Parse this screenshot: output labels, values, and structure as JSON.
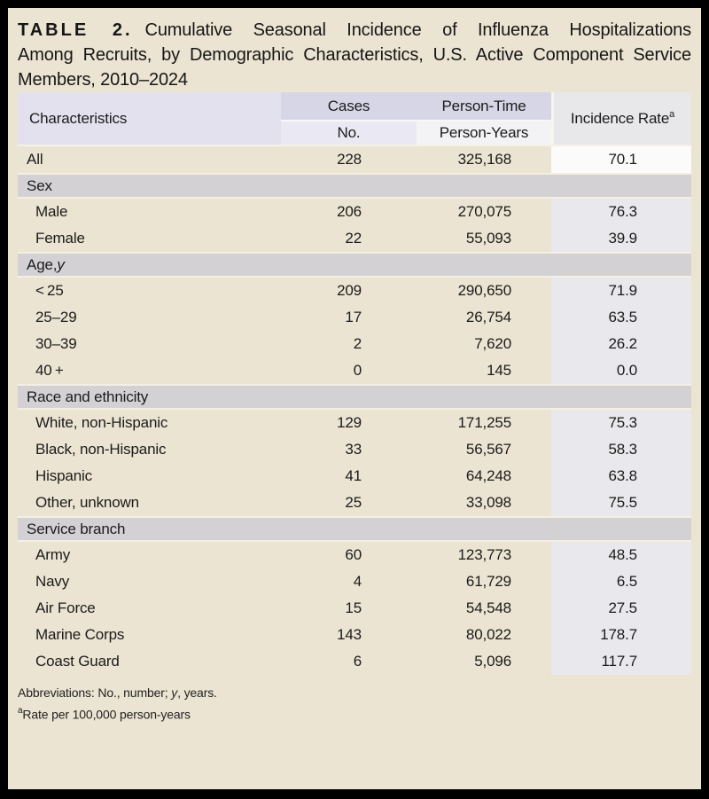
{
  "title": {
    "tag": "TABLE 2.",
    "line1_rest": "Cumulative Seasonal Incidence of Influenza Hospitalizations",
    "line2": "Among Recruits, by Demographic Characteristics, U.S. Active Component Service",
    "line3": "Members, 2010–2024"
  },
  "table": {
    "headers": {
      "characteristics": "Characteristics",
      "cases_group": "Cases",
      "person_time_group": "Person-Time",
      "cases_sub": "No.",
      "person_time_sub": "Person-Years",
      "incidence_rate": "Incidence Rate",
      "incidence_rate_footnote_mark": "a"
    },
    "all_row": {
      "label": "All",
      "cases": "228",
      "person_years": "325,168",
      "rate": "70.1"
    },
    "sections": [
      {
        "label": "Sex",
        "label_italic": "",
        "rows": [
          {
            "label": "Male",
            "cases": "206",
            "person_years": "270,075",
            "rate": "76.3"
          },
          {
            "label": "Female",
            "cases": "22",
            "person_years": "55,093",
            "rate": "39.9"
          }
        ]
      },
      {
        "label": "Age, ",
        "label_italic": "y",
        "rows": [
          {
            "label": "< 25",
            "cases": "209",
            "person_years": "290,650",
            "rate": "71.9"
          },
          {
            "label": "25–29",
            "cases": "17",
            "person_years": "26,754",
            "rate": "63.5"
          },
          {
            "label": "30–39",
            "cases": "2",
            "person_years": "7,620",
            "rate": "26.2"
          },
          {
            "label": "40 +",
            "cases": "0",
            "person_years": "145",
            "rate": "0.0"
          }
        ]
      },
      {
        "label": "Race and ethnicity",
        "label_italic": "",
        "rows": [
          {
            "label": "White, non-Hispanic",
            "cases": "129",
            "person_years": "171,255",
            "rate": "75.3"
          },
          {
            "label": "Black, non-Hispanic",
            "cases": "33",
            "person_years": "56,567",
            "rate": "58.3"
          },
          {
            "label": "Hispanic",
            "cases": "41",
            "person_years": "64,248",
            "rate": "63.8"
          },
          {
            "label": "Other, unknown",
            "cases": "25",
            "person_years": "33,098",
            "rate": "75.5"
          }
        ]
      },
      {
        "label": "Service branch",
        "label_italic": "",
        "rows": [
          {
            "label": "Army",
            "cases": "60",
            "person_years": "123,773",
            "rate": "48.5"
          },
          {
            "label": "Navy",
            "cases": "4",
            "person_years": "61,729",
            "rate": "6.5"
          },
          {
            "label": "Air Force",
            "cases": "15",
            "person_years": "54,548",
            "rate": "27.5"
          },
          {
            "label": "Marine Corps",
            "cases": "143",
            "person_years": "80,022",
            "rate": "178.7"
          },
          {
            "label": "Coast Guard",
            "cases": "6",
            "person_years": "5,096",
            "rate": "117.7"
          }
        ]
      }
    ]
  },
  "footnotes": {
    "abbreviations_prefix": "Abbreviations: No., number; ",
    "abbreviations_italic": "y",
    "abbreviations_suffix": ", years.",
    "rate_mark": "a",
    "rate_text": "Rate per 100,000 person-years"
  },
  "colors": {
    "page_background": "#ece4d2",
    "frame_border": "#000000",
    "header_lavender_dark": "#d7d6e6",
    "header_characteristics": "#e2e1ed",
    "subheader_no": "#eae9f3",
    "subheader_person_years": "#f3f3f5",
    "incidence_header": "#e8e8eb",
    "incidence_cell": "#e9e8ec",
    "incidence_cell_all_row": "#fbfbfb",
    "section_band": "#d4d1d5",
    "text": "#1b1b1b"
  }
}
